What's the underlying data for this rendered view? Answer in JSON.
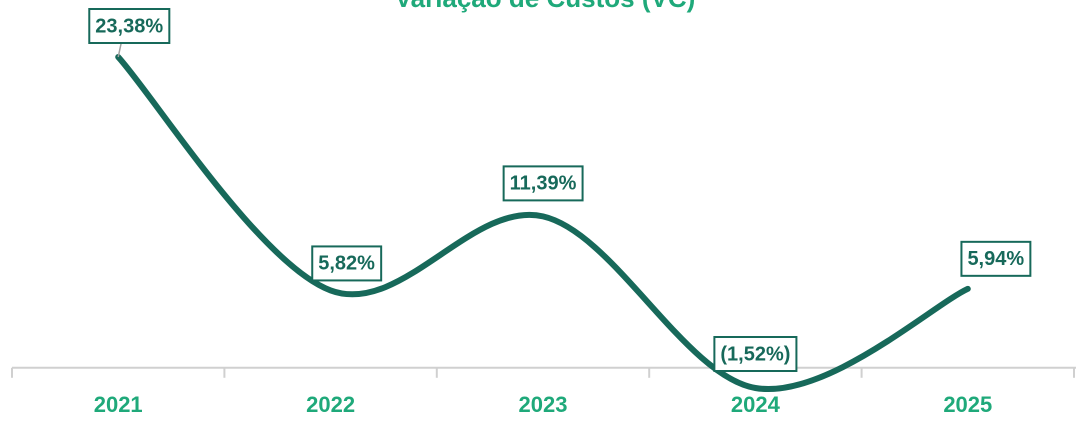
{
  "chart_data": {
    "type": "line",
    "title": "Variação de Custos (VC)",
    "categories": [
      "2021",
      "2022",
      "2023",
      "2024",
      "2025"
    ],
    "series": [
      {
        "name": "VC",
        "color": "#17695a",
        "values": [
          23.38,
          5.82,
          11.39,
          -1.52,
          5.94
        ],
        "value_labels": [
          "23,38%",
          "5,82%",
          "11,39%",
          "(1,52%)",
          "5,94%"
        ]
      }
    ],
    "smooth": true
  }
}
